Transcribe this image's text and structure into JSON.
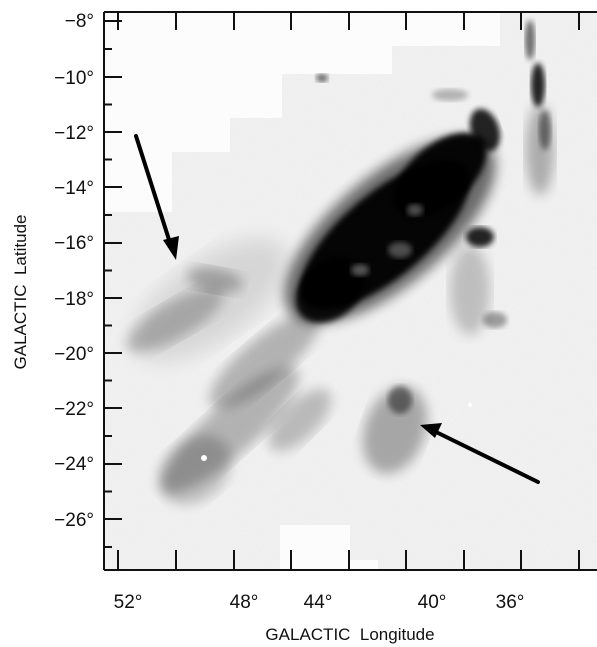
{
  "figure": {
    "xlabel": "GALACTIC  Longitude",
    "ylabel": "GALACTIC  Latitude",
    "x_ticks": [
      "52°",
      "48°",
      "44°",
      "40°",
      "36°"
    ],
    "y_ticks": [
      "−8°",
      "−10°",
      "−12°",
      "−14°",
      "−16°",
      "−18°",
      "−20°",
      "−22°",
      "−24°",
      "−26°"
    ],
    "x_range_deg": [
      53,
      32
    ],
    "y_range_deg": [
      -7.5,
      -27.8
    ],
    "annotations": [
      {
        "type": "arrow",
        "points_to": [
          49.7,
          -16.8
        ]
      },
      {
        "type": "arrow",
        "points_to": [
          39.7,
          -22.7
        ]
      }
    ],
    "colors": {
      "emission": "#000000",
      "background": "#f4f4f4",
      "axes": "#111111"
    }
  }
}
